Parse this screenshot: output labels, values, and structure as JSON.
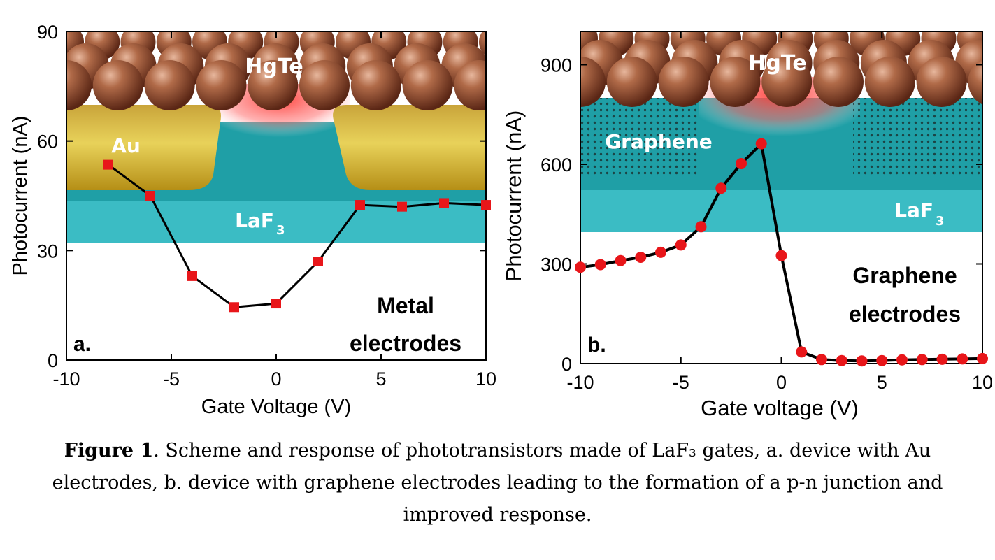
{
  "caption": {
    "label": "Figure 1",
    "text": ". Scheme and response of phototransistors made of LaF₃ gates, a. device with Au electrodes, b. device with graphene electrodes leading to the formation of a p-n junction and improved response."
  },
  "colors": {
    "marker": "#e8161a",
    "line": "#000000",
    "laf3": "#3bbcc4",
    "gold": "#d8b728",
    "hgte": "#a0583a",
    "channel": "#1f9fa6"
  },
  "chart_data": [
    {
      "panel_label": "a.",
      "type": "line",
      "marker": "square",
      "xlabel": "Gate Voltage (V)",
      "ylabel": "Photocurrent (nA)",
      "xlim": [
        -10,
        10
      ],
      "ylim": [
        0,
        90
      ],
      "xticks": [
        -10,
        -5,
        0,
        5,
        10
      ],
      "yticks": [
        0,
        30,
        60,
        90
      ],
      "x": [
        -8,
        -6,
        -4,
        -2,
        0,
        2,
        4,
        6,
        8,
        10
      ],
      "y": [
        53.5,
        45,
        23,
        14.5,
        15.5,
        27,
        42.5,
        42,
        43,
        42.5
      ],
      "scene_labels": {
        "hgte": "HgTe",
        "au": "Au",
        "laf3": "LaF",
        "laf3_sub": "3"
      },
      "annotation": [
        "Metal",
        "electrodes"
      ]
    },
    {
      "panel_label": "b.",
      "type": "line",
      "marker": "circle",
      "xlabel": "Gate voltage (V)",
      "ylabel": "Photocurrent (nA)",
      "xlim": [
        -10,
        10
      ],
      "ylim": [
        0,
        1000
      ],
      "xticks": [
        -10,
        -5,
        0,
        5,
        10
      ],
      "yticks": [
        0,
        300,
        600,
        900
      ],
      "x": [
        -10,
        -9,
        -8,
        -7,
        -6,
        -5,
        -4,
        -3,
        -2,
        -1,
        0,
        1,
        2,
        3,
        4,
        5,
        6,
        7,
        8,
        9,
        10
      ],
      "y": [
        290,
        298,
        310,
        320,
        335,
        357,
        412,
        528,
        602,
        662,
        325,
        35,
        12,
        9,
        8,
        9,
        11,
        12,
        13,
        14,
        15
      ],
      "scene_labels": {
        "hgte": "HgTe",
        "graphene": "Graphene",
        "laf3": "LaF",
        "laf3_sub": "3"
      },
      "annotation": [
        "Graphene",
        "electrodes"
      ]
    }
  ]
}
